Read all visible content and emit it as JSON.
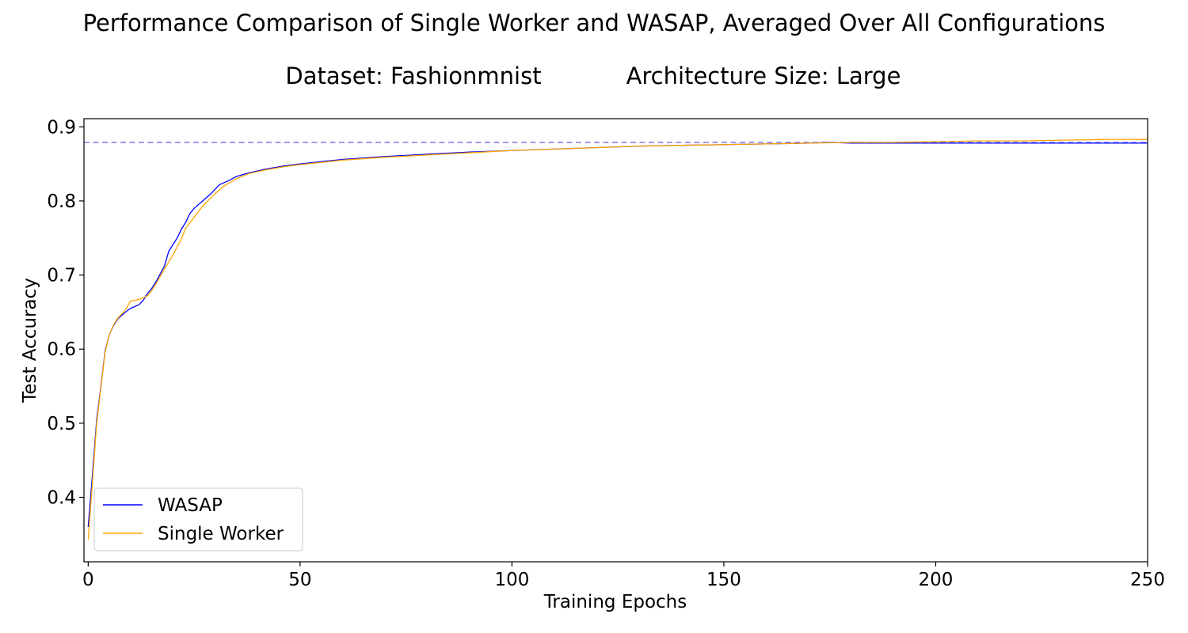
{
  "chart_data": {
    "type": "line",
    "title": "Performance Comparison of Single Worker and WASAP, Averaged Over All Configurations",
    "subtitle_left": "Dataset: Fashionmnist",
    "subtitle_right": "Architecture Size: Large",
    "xlabel": "Training Epochs",
    "ylabel": "Test Accuracy",
    "xlim": [
      -1,
      250
    ],
    "ylim": [
      0.313,
      0.911
    ],
    "x_ticks": [
      0,
      50,
      100,
      150,
      200,
      250
    ],
    "y_ticks": [
      0.4,
      0.5,
      0.6,
      0.7,
      0.8,
      0.9
    ],
    "grid": false,
    "legend_position": "lower-left",
    "reference_line": {
      "y": 0.879,
      "color": "#7b7bf0",
      "style": "dashed"
    },
    "series": [
      {
        "name": "WASAP",
        "color": "#0000ff",
        "points": [
          [
            0,
            0.36
          ],
          [
            1,
            0.43
          ],
          [
            2,
            0.505
          ],
          [
            3,
            0.55
          ],
          [
            4,
            0.598
          ],
          [
            5,
            0.62
          ],
          [
            6,
            0.632
          ],
          [
            7,
            0.641
          ],
          [
            8,
            0.646
          ],
          [
            9,
            0.651
          ],
          [
            10,
            0.655
          ],
          [
            12,
            0.66
          ],
          [
            13,
            0.666
          ],
          [
            14,
            0.675
          ],
          [
            15,
            0.682
          ],
          [
            16,
            0.691
          ],
          [
            18,
            0.712
          ],
          [
            19,
            0.732
          ],
          [
            21,
            0.75
          ],
          [
            22,
            0.762
          ],
          [
            23,
            0.771
          ],
          [
            24,
            0.783
          ],
          [
            25,
            0.79
          ],
          [
            27,
            0.8
          ],
          [
            29,
            0.81
          ],
          [
            31,
            0.822
          ],
          [
            33,
            0.827
          ],
          [
            35,
            0.833
          ],
          [
            38,
            0.838
          ],
          [
            42,
            0.843
          ],
          [
            46,
            0.847
          ],
          [
            50,
            0.85
          ],
          [
            55,
            0.853
          ],
          [
            60,
            0.856
          ],
          [
            70,
            0.86
          ],
          [
            80,
            0.863
          ],
          [
            90,
            0.866
          ],
          [
            100,
            0.868
          ],
          [
            110,
            0.87
          ],
          [
            120,
            0.872
          ],
          [
            130,
            0.874
          ],
          [
            140,
            0.875
          ],
          [
            150,
            0.876
          ],
          [
            160,
            0.877
          ],
          [
            170,
            0.878
          ],
          [
            175,
            0.879
          ],
          [
            180,
            0.878
          ],
          [
            200,
            0.878
          ],
          [
            220,
            0.878
          ],
          [
            240,
            0.878
          ],
          [
            250,
            0.878
          ]
        ]
      },
      {
        "name": "Single Worker",
        "color": "#ffa500",
        "points": [
          [
            0,
            0.343
          ],
          [
            1,
            0.42
          ],
          [
            2,
            0.5
          ],
          [
            3,
            0.548
          ],
          [
            4,
            0.596
          ],
          [
            5,
            0.62
          ],
          [
            6,
            0.633
          ],
          [
            7,
            0.642
          ],
          [
            8,
            0.648
          ],
          [
            9,
            0.655
          ],
          [
            10,
            0.665
          ],
          [
            12,
            0.667
          ],
          [
            14,
            0.672
          ],
          [
            15,
            0.679
          ],
          [
            16,
            0.688
          ],
          [
            18,
            0.708
          ],
          [
            20,
            0.727
          ],
          [
            22,
            0.749
          ],
          [
            23,
            0.763
          ],
          [
            25,
            0.778
          ],
          [
            27,
            0.793
          ],
          [
            30,
            0.81
          ],
          [
            32,
            0.82
          ],
          [
            35,
            0.83
          ],
          [
            38,
            0.837
          ],
          [
            42,
            0.842
          ],
          [
            46,
            0.846
          ],
          [
            50,
            0.849
          ],
          [
            55,
            0.852
          ],
          [
            60,
            0.855
          ],
          [
            70,
            0.859
          ],
          [
            80,
            0.862
          ],
          [
            90,
            0.865
          ],
          [
            100,
            0.868
          ],
          [
            110,
            0.87
          ],
          [
            120,
            0.872
          ],
          [
            130,
            0.874
          ],
          [
            140,
            0.875
          ],
          [
            150,
            0.876
          ],
          [
            160,
            0.877
          ],
          [
            170,
            0.878
          ],
          [
            180,
            0.879
          ],
          [
            190,
            0.879
          ],
          [
            200,
            0.88
          ],
          [
            210,
            0.881
          ],
          [
            220,
            0.881
          ],
          [
            230,
            0.882
          ],
          [
            240,
            0.883
          ],
          [
            250,
            0.883
          ]
        ]
      }
    ]
  }
}
